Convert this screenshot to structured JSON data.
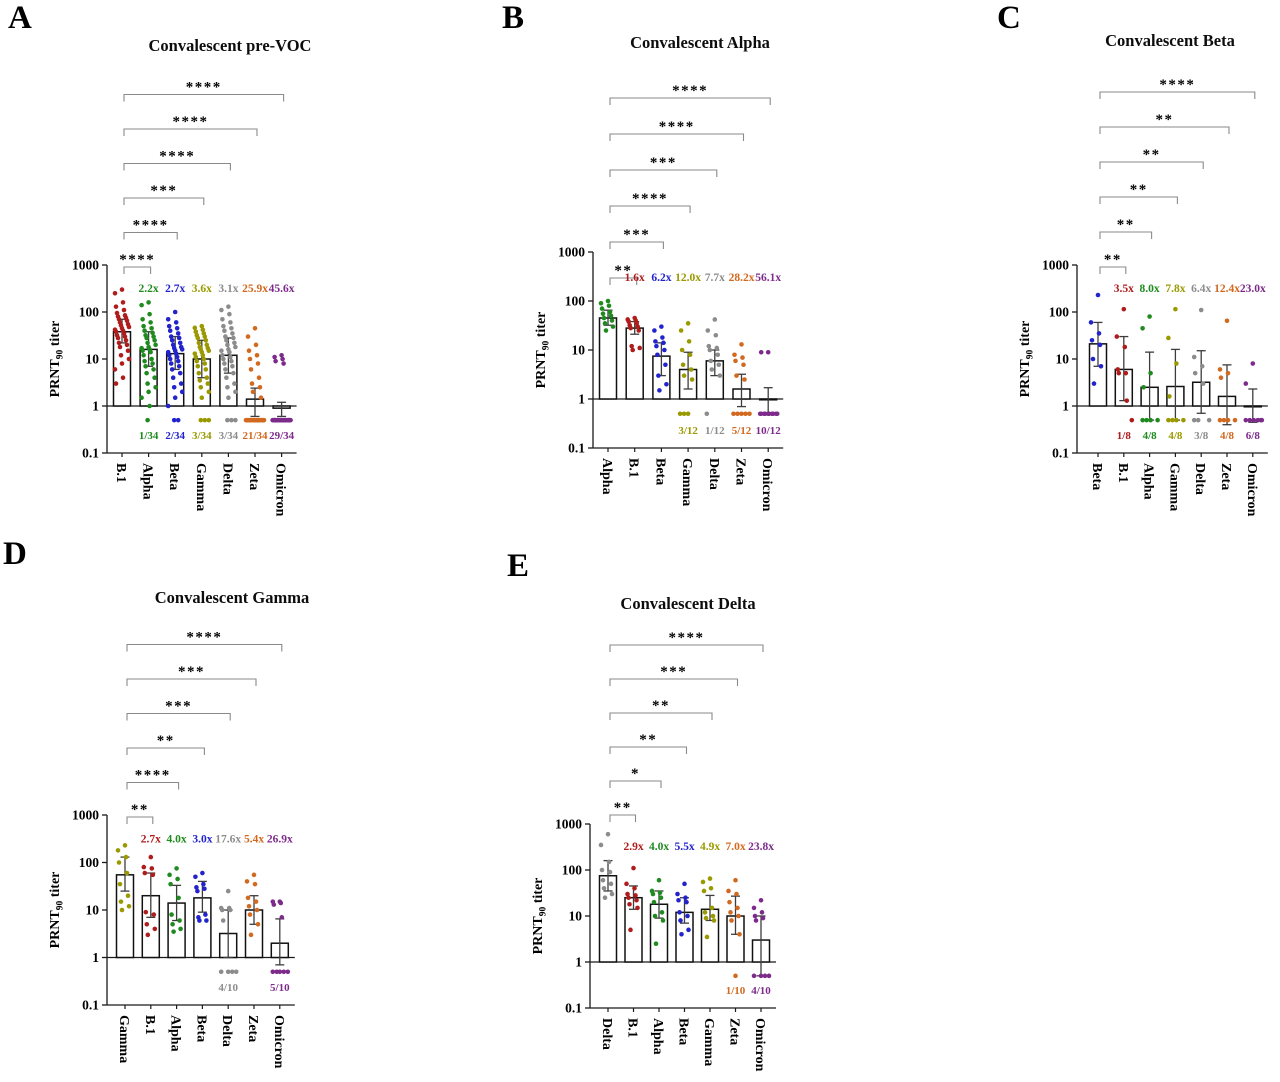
{
  "figure": {
    "background": "#ffffff",
    "y_tick_values": [
      1000,
      100,
      10,
      1,
      0.1
    ],
    "y_tick_labels": [
      "1000",
      "100",
      "10",
      "1",
      "0.1"
    ],
    "y_axis_label": {
      "main": "PRNT",
      "sub": "90",
      "rest": " titer"
    },
    "significance_note_order": "brackets listed from comparison vs 2nd category (bottom bracket) to last category (top bracket)"
  },
  "chart_data": [
    {
      "panel_label": "A",
      "title": "Convalescent pre-VOC",
      "type": "bar",
      "ylog": true,
      "ylim": [
        0.1,
        1000
      ],
      "yticks": [
        1000,
        100,
        10,
        1,
        0.1
      ],
      "ylabel": "PRNT90 titer",
      "n_per_group": 34,
      "categories": [
        "B.1",
        "Alpha",
        "Beta",
        "Gamma",
        "Delta",
        "Zeta",
        "Omicron"
      ],
      "colors": [
        "#b01c1c",
        "#1f8b1f",
        "#2323cd",
        "#9a9a00",
        "#8c8c8c",
        "#d2691e",
        "#7d2b8b"
      ],
      "bars": [
        38,
        16,
        13,
        10,
        12,
        1.4,
        0.9
      ],
      "err_lo": [
        22,
        7,
        6,
        4,
        5,
        0.6,
        0.6
      ],
      "err_hi": [
        70,
        38,
        30,
        25,
        28,
        2.4,
        1.2
      ],
      "fold_changes": [
        null,
        "2.2x",
        "2.7x",
        "3.6x",
        "3.1x",
        "25.9x",
        "45.6x"
      ],
      "below_counts": [
        null,
        "1/34",
        "2/34",
        "3/34",
        "3/34",
        "21/34",
        "29/34"
      ],
      "significance_vs_first": [
        "****",
        "****",
        "***",
        "****",
        "****",
        "****"
      ],
      "dots": [
        [
          300,
          250,
          160,
          130,
          110,
          95,
          85,
          80,
          75,
          70,
          65,
          60,
          55,
          52,
          48,
          45,
          42,
          40,
          38,
          35,
          32,
          30,
          28,
          25,
          22,
          20,
          18,
          15,
          12,
          10,
          8,
          6,
          4,
          3
        ],
        [
          160,
          140,
          90,
          70,
          60,
          50,
          45,
          40,
          36,
          32,
          30,
          28,
          25,
          22,
          20,
          18,
          17,
          16,
          15,
          14,
          12,
          10,
          9,
          8,
          7,
          6,
          5,
          4,
          3,
          2.5,
          2,
          1.5,
          1,
          0.5
        ],
        [
          100,
          70,
          60,
          50,
          45,
          40,
          35,
          30,
          28,
          25,
          22,
          20,
          18,
          17,
          16,
          15,
          14,
          13,
          12,
          11,
          10,
          9,
          8,
          7,
          6,
          5,
          4,
          3,
          2.5,
          2,
          1.5,
          1,
          0.5,
          0.5
        ],
        [
          50,
          46,
          42,
          38,
          35,
          32,
          30,
          28,
          25,
          22,
          20,
          18,
          17,
          16,
          15,
          14,
          13,
          12,
          11,
          10,
          9,
          8,
          7,
          6,
          5,
          4,
          3.5,
          3,
          2.5,
          2,
          1.5,
          0.5,
          0.5,
          0.5
        ],
        [
          130,
          110,
          90,
          70,
          60,
          50,
          45,
          40,
          35,
          30,
          28,
          25,
          22,
          20,
          18,
          16,
          15,
          14,
          12,
          11,
          10,
          9,
          8,
          7,
          6,
          5,
          4,
          3,
          2.5,
          2,
          1.5,
          0.5,
          0.5,
          0.5
        ],
        [
          45,
          30,
          20,
          15,
          12,
          10,
          8,
          6,
          4,
          3,
          2.5,
          2,
          1.5,
          0.5,
          0.5,
          0.5,
          0.5,
          0.5,
          0.5,
          0.5,
          0.5,
          0.5,
          0.5,
          0.5,
          0.5,
          0.5,
          0.5,
          0.5,
          0.5,
          0.5,
          0.5,
          0.5,
          0.5,
          0.5
        ],
        [
          12,
          11,
          10,
          9,
          8,
          0.5,
          0.5,
          0.5,
          0.5,
          0.5,
          0.5,
          0.5,
          0.5,
          0.5,
          0.5,
          0.5,
          0.5,
          0.5,
          0.5,
          0.5,
          0.5,
          0.5,
          0.5,
          0.5,
          0.5,
          0.5,
          0.5,
          0.5,
          0.5,
          0.5,
          0.5,
          0.5,
          0.5,
          0.5
        ]
      ]
    },
    {
      "panel_label": "B",
      "title": "Convalescent Alpha",
      "type": "bar",
      "ylog": true,
      "ylim": [
        0.1,
        1000
      ],
      "yticks": [
        1000,
        100,
        10,
        1,
        0.1
      ],
      "ylabel": "PRNT90 titer",
      "n_per_group": 12,
      "categories": [
        "Alpha",
        "B.1",
        "Beta",
        "Gamma",
        "Delta",
        "Zeta",
        "Omicron"
      ],
      "colors": [
        "#1f8b1f",
        "#b01c1c",
        "#2323cd",
        "#9a9a00",
        "#8c8c8c",
        "#d2691e",
        "#7d2b8b"
      ],
      "bars": [
        45,
        28,
        7.5,
        4,
        6,
        1.6,
        1.0
      ],
      "err_lo": [
        32,
        21,
        3,
        1.6,
        3,
        0.7,
        0.5
      ],
      "err_hi": [
        65,
        38,
        14,
        9,
        10,
        3.2,
        1.7
      ],
      "fold_changes": [
        null,
        "1.6x",
        "6.2x",
        "12.0x",
        "7.7x",
        "28.2x",
        "56.1x"
      ],
      "below_counts": [
        null,
        null,
        null,
        "3/12",
        "1/12",
        "5/12",
        "10/12"
      ],
      "significance_vs_first": [
        "**",
        "***",
        "****",
        "***",
        "****",
        "****"
      ],
      "dots": [
        [
          100,
          90,
          80,
          70,
          60,
          55,
          50,
          45,
          40,
          35,
          30,
          25
        ],
        [
          45,
          42,
          40,
          38,
          35,
          32,
          30,
          28,
          25,
          12,
          11,
          10
        ],
        [
          30,
          25,
          18,
          15,
          14,
          12,
          10,
          8,
          5,
          3,
          2,
          1.5
        ],
        [
          35,
          25,
          15,
          10,
          8,
          5,
          4,
          3,
          2.5,
          0.5,
          0.5,
          0.5
        ],
        [
          42,
          25,
          20,
          12,
          11,
          10,
          8,
          6,
          5,
          4,
          3,
          0.5
        ],
        [
          13,
          8,
          7,
          6,
          5,
          3,
          2.5,
          0.5,
          0.5,
          0.5,
          0.5,
          0.5
        ],
        [
          9,
          9,
          0.5,
          0.5,
          0.5,
          0.5,
          0.5,
          0.5,
          0.5,
          0.5,
          0.5,
          0.5
        ]
      ]
    },
    {
      "panel_label": "C",
      "title": "Convalescent Beta",
      "type": "bar",
      "ylog": true,
      "ylim": [
        0.1,
        1000
      ],
      "yticks": [
        1000,
        100,
        10,
        1,
        0.1
      ],
      "ylabel": "PRNT90 titer",
      "n_per_group": 8,
      "categories": [
        "Beta",
        "B.1",
        "Alpha",
        "Gamma",
        "Delta",
        "Zeta",
        "Omicron"
      ],
      "colors": [
        "#2323cd",
        "#b01c1c",
        "#1f8b1f",
        "#9a9a00",
        "#8c8c8c",
        "#d2691e",
        "#7d2b8b"
      ],
      "bars": [
        21,
        6,
        2.5,
        2.6,
        3.2,
        1.6,
        1.0
      ],
      "err_lo": [
        7,
        1.3,
        0.5,
        0.5,
        0.7,
        0.4,
        0.45
      ],
      "err_hi": [
        60,
        30,
        14,
        16,
        15,
        7.5,
        2.3
      ],
      "fold_changes": [
        null,
        "3.5x",
        "8.0x",
        "7.8x",
        "6.4x",
        "12.4x",
        "23.0x"
      ],
      "below_counts": [
        null,
        "1/8",
        "4/8",
        "4/8",
        "3/8",
        "4/8",
        "6/8"
      ],
      "significance_vs_first": [
        "**",
        "**",
        "**",
        "**",
        "**",
        "****"
      ],
      "dots": [
        [
          230,
          60,
          35,
          25,
          20,
          10,
          7,
          3
        ],
        [
          115,
          30,
          18,
          6,
          5,
          5,
          1.3,
          0.5
        ],
        [
          80,
          45,
          5,
          2.5,
          0.5,
          0.5,
          0.5,
          0.5
        ],
        [
          115,
          28,
          8,
          1.6,
          0.5,
          0.5,
          0.5,
          0.5
        ],
        [
          110,
          11,
          7,
          5,
          3,
          0.5,
          0.5,
          0.5
        ],
        [
          65,
          6,
          5,
          4,
          0.5,
          0.5,
          0.5,
          0.5
        ],
        [
          8,
          3,
          0.5,
          0.5,
          0.5,
          0.5,
          0.5,
          0.5
        ]
      ]
    },
    {
      "panel_label": "D",
      "title": "Convalescent Gamma",
      "type": "bar",
      "ylog": true,
      "ylim": [
        0.1,
        1000
      ],
      "yticks": [
        1000,
        100,
        10,
        1,
        0.1
      ],
      "ylabel": "PRNT90 titer",
      "n_per_group": 10,
      "categories": [
        "Gamma",
        "B.1",
        "Alpha",
        "Beta",
        "Delta",
        "Zeta",
        "Omicron"
      ],
      "colors": [
        "#9a9a00",
        "#b01c1c",
        "#1f8b1f",
        "#2323cd",
        "#8c8c8c",
        "#d2691e",
        "#7d2b8b"
      ],
      "bars": [
        55,
        20,
        14,
        18,
        3.2,
        10,
        2.0
      ],
      "err_lo": [
        25,
        7,
        6,
        9,
        1.0,
        5,
        0.7
      ],
      "err_hi": [
        130,
        60,
        33,
        40,
        10,
        20,
        6.5
      ],
      "fold_changes": [
        null,
        "2.7x",
        "4.0x",
        "3.0x",
        "17.6x",
        "5.4x",
        "26.9x"
      ],
      "below_counts": [
        null,
        null,
        null,
        null,
        "4/10",
        null,
        "5/10"
      ],
      "significance_vs_first": [
        "**",
        "****",
        "**",
        "***",
        "***",
        "****"
      ],
      "dots": [
        [
          230,
          180,
          130,
          100,
          60,
          35,
          20,
          15,
          12,
          10
        ],
        [
          130,
          80,
          75,
          60,
          55,
          9,
          8,
          5,
          4,
          3
        ],
        [
          75,
          55,
          45,
          35,
          18,
          8,
          6,
          5,
          4,
          3.5
        ],
        [
          60,
          50,
          35,
          30,
          28,
          25,
          8,
          7,
          6,
          6
        ],
        [
          25,
          11,
          11,
          10,
          10,
          6,
          0.5,
          0.5,
          0.5,
          0.5
        ],
        [
          55,
          40,
          35,
          18,
          15,
          12,
          10,
          8,
          5,
          3
        ],
        [
          15,
          15,
          14,
          13,
          7,
          0.5,
          0.5,
          0.5,
          0.5,
          0.5
        ]
      ]
    },
    {
      "panel_label": "E",
      "title": "Convalescent Delta",
      "type": "bar",
      "ylog": true,
      "ylim": [
        0.1,
        1000
      ],
      "yticks": [
        1000,
        100,
        10,
        1,
        0.1
      ],
      "ylabel": "PRNT90 titer",
      "n_per_group": 10,
      "categories": [
        "Delta",
        "B.1",
        "Alpha",
        "Beta",
        "Gamma",
        "Zeta",
        "Omicron"
      ],
      "colors": [
        "#8c8c8c",
        "#b01c1c",
        "#1f8b1f",
        "#2323cd",
        "#9a9a00",
        "#d2691e",
        "#7d2b8b"
      ],
      "bars": [
        75,
        25,
        18,
        12,
        14,
        10,
        3.0
      ],
      "err_lo": [
        35,
        14,
        9,
        7,
        8,
        4,
        0.5
      ],
      "err_hi": [
        160,
        45,
        35,
        25,
        28,
        27,
        10
      ],
      "fold_changes": [
        null,
        "2.9x",
        "4.0x",
        "5.5x",
        "4.9x",
        "7.0x",
        "23.8x"
      ],
      "below_counts": [
        null,
        null,
        null,
        null,
        null,
        "1/10",
        "4/10"
      ],
      "significance_vs_first": [
        "**",
        "*",
        "**",
        "**",
        "***",
        "****"
      ],
      "dots": [
        [
          600,
          350,
          150,
          100,
          90,
          60,
          50,
          40,
          30,
          25
        ],
        [
          110,
          50,
          40,
          30,
          28,
          25,
          22,
          18,
          15,
          5
        ],
        [
          60,
          35,
          32,
          30,
          25,
          20,
          12,
          10,
          8,
          2.5
        ],
        [
          50,
          30,
          25,
          22,
          20,
          12,
          10,
          8,
          5,
          4
        ],
        [
          65,
          55,
          40,
          35,
          15,
          12,
          10,
          9,
          8,
          3.5
        ],
        [
          60,
          35,
          30,
          20,
          15,
          12,
          10,
          8,
          4,
          0.5
        ],
        [
          22,
          15,
          12,
          10,
          9,
          8,
          0.5,
          0.5,
          0.5,
          0.5
        ]
      ]
    }
  ]
}
